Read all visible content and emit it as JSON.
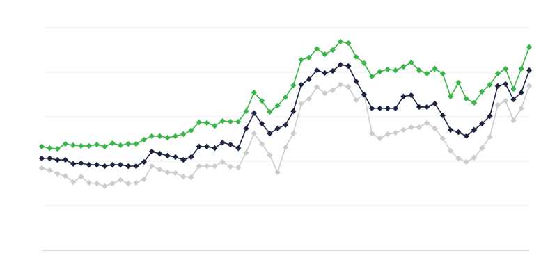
{
  "chart_data": {
    "type": "line",
    "title": "",
    "xlabel": "",
    "ylabel": "",
    "ylim": [
      0,
      100
    ],
    "grid": true,
    "legend": "none",
    "marker": "diamond",
    "series": [
      {
        "color": "#3ab54a",
        "values": [
          46.6,
          45.9,
          45.6,
          47.8,
          47.2,
          46.9,
          46.9,
          47.5,
          46.6,
          48.1,
          47.2,
          47.8,
          47.8,
          49.7,
          51.3,
          51.3,
          50.6,
          51.3,
          52.2,
          53.8,
          57.5,
          57.2,
          55.9,
          58.1,
          57.8,
          57.8,
          62.5,
          70.9,
          67.2,
          62.2,
          65.0,
          68.8,
          74.1,
          85.6,
          86.6,
          90.6,
          88.1,
          90.0,
          93.8,
          93.1,
          86.9,
          84.1,
          78.1,
          80.3,
          81.3,
          80.9,
          82.5,
          84.4,
          80.9,
          79.4,
          81.6,
          79.4,
          69.1,
          75.3,
          68.1,
          66.3,
          71.3,
          74.4,
          79.4,
          81.6,
          72.5,
          81.6,
          91.3
        ]
      },
      {
        "color": "#1b2340",
        "values": [
          41.3,
          41.3,
          40.6,
          40.6,
          38.8,
          39.1,
          38.4,
          38.4,
          37.8,
          38.4,
          38.4,
          37.8,
          37.8,
          39.7,
          44.4,
          43.4,
          42.5,
          41.9,
          40.6,
          41.9,
          46.6,
          46.6,
          45.9,
          48.4,
          47.5,
          45.9,
          54.7,
          61.6,
          56.9,
          52.5,
          54.7,
          56.3,
          62.5,
          74.4,
          76.9,
          80.9,
          79.7,
          80.6,
          83.4,
          82.8,
          75.9,
          70.0,
          63.8,
          63.8,
          63.8,
          63.8,
          69.1,
          69.7,
          64.4,
          64.4,
          65.9,
          60.6,
          54.1,
          53.1,
          51.3,
          54.1,
          56.9,
          60.3,
          73.8,
          74.7,
          67.8,
          70.9,
          80.9
        ]
      },
      {
        "color": "#cccccc",
        "values": [
          36.9,
          35.9,
          34.4,
          33.4,
          30.6,
          33.1,
          30.3,
          30.0,
          28.8,
          30.0,
          31.6,
          30.0,
          30.3,
          31.9,
          37.8,
          36.3,
          35.0,
          34.7,
          33.1,
          32.8,
          37.8,
          37.8,
          37.8,
          39.7,
          37.5,
          37.2,
          43.8,
          52.5,
          47.8,
          42.8,
          35.0,
          46.3,
          52.5,
          65.9,
          68.1,
          73.4,
          70.6,
          71.9,
          74.4,
          73.4,
          67.5,
          70.0,
          52.5,
          50.3,
          52.2,
          52.8,
          54.1,
          55.3,
          55.3,
          57.2,
          54.7,
          50.3,
          44.7,
          41.3,
          39.7,
          41.6,
          45.9,
          50.9,
          65.3,
          67.2,
          58.4,
          63.8,
          73.8
        ]
      }
    ]
  }
}
